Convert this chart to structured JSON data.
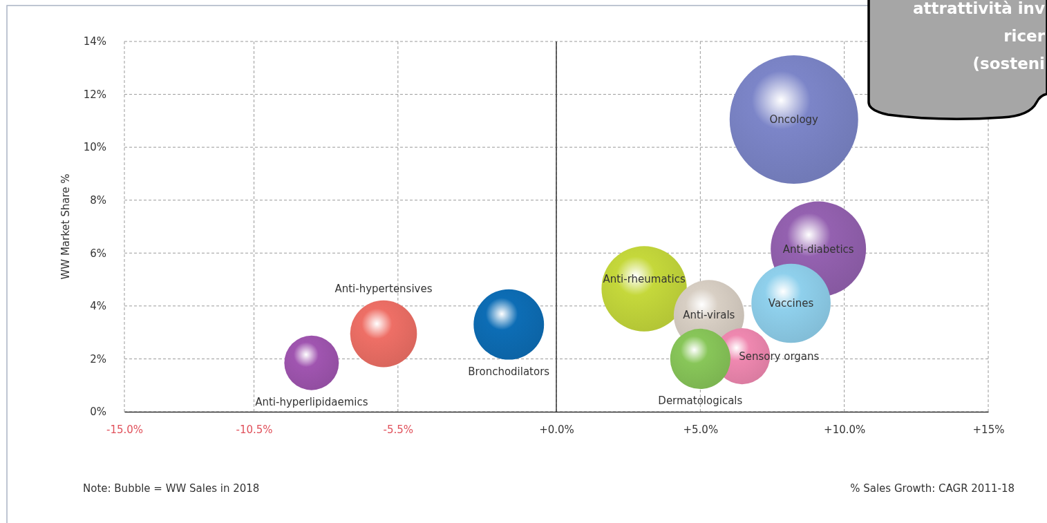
{
  "chart_data": {
    "type": "bubble",
    "xlabel": "% Sales Growth: CAGR 2011-18",
    "ylabel": "WW Market Share %",
    "annotations": [
      "Note: Bubble = WW Sales in 2018",
      "attrattività inv\nricer\n(sosteni"
    ],
    "xlim": [
      -15,
      15
    ],
    "xticks": [
      {
        "value": -15,
        "label": "-15.0%"
      },
      {
        "value": -10.5,
        "label": "-10.5%"
      },
      {
        "value": -5.5,
        "label": "-5.5%"
      },
      {
        "value": 0,
        "label": "+0.0%"
      },
      {
        "value": 5,
        "label": "+5.0%"
      },
      {
        "value": 10,
        "label": "+10.0%"
      },
      {
        "value": 15,
        "label": "+15%"
      }
    ],
    "ylim": [
      0,
      14
    ],
    "yticks": [
      {
        "value": 0,
        "label": "0%"
      },
      {
        "value": 2,
        "label": "2%"
      },
      {
        "value": 4,
        "label": "4%"
      },
      {
        "value": 6,
        "label": "6%"
      },
      {
        "value": 8,
        "label": "8%"
      },
      {
        "value": 10,
        "label": "10%"
      },
      {
        "value": 12,
        "label": "12%"
      },
      {
        "value": 14,
        "label": "14%"
      }
    ],
    "grid": true,
    "legend": false,
    "marker": "circle",
    "ref_lines": [
      {
        "axis": "x",
        "value": 0,
        "label": null,
        "color": "#333333",
        "line_style": "solid"
      }
    ],
    "series": [
      {
        "name": "Anti-hyperlipidaemics",
        "color": "#a055b0",
        "x": [
          -8.5
        ],
        "values": [
          1.85
        ],
        "sizes": [
          0.18
        ]
      },
      {
        "name": "Anti-hypertensives",
        "color": "#ee6f66",
        "x": [
          -6.0
        ],
        "values": [
          2.95
        ],
        "sizes": [
          0.27
        ]
      },
      {
        "name": "Bronchodilators",
        "color": "#0d6db5",
        "x": [
          -1.65
        ],
        "values": [
          3.3
        ],
        "sizes": [
          0.3
        ]
      },
      {
        "name": "Oncology",
        "color": "#7c85c8",
        "x": [
          8.25
        ],
        "values": [
          11.05
        ],
        "sizes": [
          1
        ]
      },
      {
        "name": "Anti-diabetics",
        "color": "#9461b0",
        "x": [
          9.1
        ],
        "values": [
          6.15
        ],
        "sizes": [
          0.55
        ]
      },
      {
        "name": "Vaccines",
        "color": "#8fd0ec",
        "x": [
          8.15
        ],
        "values": [
          4.1
        ],
        "sizes": [
          0.38
        ]
      },
      {
        "name": "Anti-rheumatics",
        "color": "#c5d83b",
        "x": [
          3.05
        ],
        "values": [
          4.65
        ],
        "sizes": [
          0.44
        ]
      },
      {
        "name": "Anti-virals",
        "color": "#d8cfc4",
        "x": [
          5.3
        ],
        "values": [
          3.65
        ],
        "sizes": [
          0.3
        ]
      },
      {
        "name": "Sensory organs",
        "color": "#ef88b0",
        "x": [
          6.45
        ],
        "values": [
          2.1
        ],
        "sizes": [
          0.19
        ]
      },
      {
        "name": "Dermatologicals",
        "color": "#88c659",
        "x": [
          5.0
        ],
        "values": [
          2.0
        ],
        "sizes": [
          0.22
        ]
      }
    ]
  }
}
